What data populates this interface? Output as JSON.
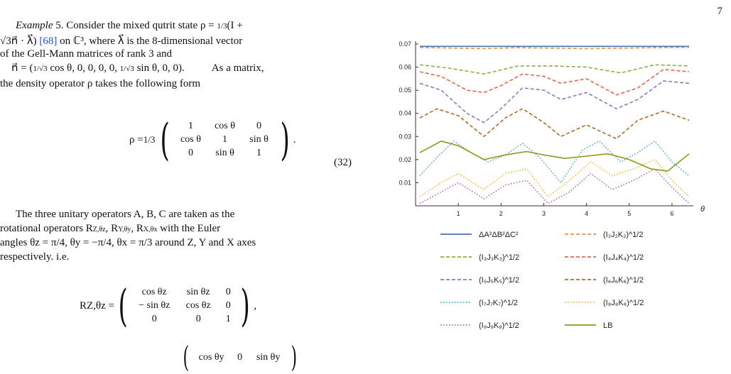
{
  "page_number": "7",
  "text": {
    "example_label": "Example",
    "example_num": "5.",
    "line1": "Consider the mixed qutrit state ρ = ",
    "frac_13": "1/3",
    "line1_tail": "(I +",
    "line2_a": "√3",
    "line2_b": "n⃗ · λ⃗) ",
    "ref68": "[68]",
    "line2_c": " on ℂ³, where λ⃗ is the 8-dimensional vector",
    "line3": "of the Gell-Mann matrices of rank 3 and",
    "line4_a": "n⃗ = (",
    "line4_frac": "1/√3",
    "line4_b": " cos θ, 0, 0, 0, 0, ",
    "line4_c": " sin θ, 0, 0).",
    "line4_d": "As a matrix,",
    "line5": "the density operator ρ takes the following form",
    "eq32_lhs": "ρ = ",
    "eq32_frac": "1/3",
    "eq32_rows": [
      [
        "1",
        "cos θ",
        "0"
      ],
      [
        "cos θ",
        "1",
        "sin θ"
      ],
      [
        "0",
        "sin θ",
        "1"
      ]
    ],
    "eq32_end": ".",
    "eq32_num": "(32)",
    "para2_l1": "The three unitary operators A, B, C are taken as the",
    "para2_l2": "rotational operators R",
    "para2_l2_tail": " with the Euler",
    "para2_l3": "angles θz = π/4, θy = −π/4, θx = π/3 around Z, Y and X axes",
    "para2_l4": "respectively. i.e.",
    "rz_lhs": "RZ,θz = ",
    "rz_rows": [
      [
        "cos θz",
        "sin θz",
        "0"
      ],
      [
        "− sin θz",
        "cos θz",
        "0"
      ],
      [
        "0",
        "0",
        "1"
      ]
    ],
    "rz_end": ",",
    "ry_row1": [
      "cos θy",
      "0",
      "sin θy"
    ]
  },
  "chart_data": {
    "type": "line",
    "x_label": "θ",
    "xlim": [
      0,
      6.4
    ],
    "ylim": [
      0,
      0.07
    ],
    "x_ticks": [
      "1",
      "2",
      "3",
      "4",
      "5",
      "6"
    ],
    "y_ticks": [
      "0.01",
      "0.02",
      "0.03",
      "0.04",
      "0.05",
      "0.06",
      "0.07"
    ],
    "series": [
      {
        "name": "ΔA²ΔB²ΔC²",
        "color": "#4a72b0",
        "dash": "solid",
        "x": [
          0.1,
          6.4
        ],
        "y": [
          0.069,
          0.069
        ]
      },
      {
        "name": "(I₂J₂K₂)^1/2",
        "color": "#e0973a",
        "dash": "dashed",
        "x": [
          0.1,
          1.0,
          1.6,
          2.4,
          3.2,
          4.0,
          4.8,
          5.6,
          6.4
        ],
        "y": [
          0.0685,
          0.0682,
          0.068,
          0.0684,
          0.0682,
          0.068,
          0.0682,
          0.0684,
          0.0686
        ]
      },
      {
        "name": "(I₃J₃K₃)^1/2",
        "color": "#8db13d",
        "dash": "dashed",
        "x": [
          0.1,
          0.8,
          1.6,
          2.4,
          3.2,
          4.0,
          4.8,
          5.6,
          6.4
        ],
        "y": [
          0.061,
          0.0595,
          0.057,
          0.0605,
          0.0605,
          0.06,
          0.0575,
          0.061,
          0.0605
        ]
      },
      {
        "name": "(I₄J₄K₄)^1/2",
        "color": "#e06848",
        "dash": "dashed",
        "x": [
          0.1,
          0.6,
          1.2,
          1.6,
          2.0,
          2.5,
          3.0,
          3.4,
          4.0,
          4.7,
          5.2,
          5.8,
          6.4
        ],
        "y": [
          0.058,
          0.056,
          0.05,
          0.049,
          0.052,
          0.057,
          0.056,
          0.053,
          0.055,
          0.048,
          0.051,
          0.059,
          0.058
        ]
      },
      {
        "name": "(I₅J₅K₅)^1/2",
        "color": "#8a7cc0",
        "dash": "dashed",
        "x": [
          0.1,
          0.6,
          1.2,
          1.6,
          2.0,
          2.5,
          3.0,
          3.4,
          4.0,
          4.7,
          5.2,
          5.8,
          6.4
        ],
        "y": [
          0.053,
          0.05,
          0.04,
          0.036,
          0.042,
          0.051,
          0.05,
          0.046,
          0.049,
          0.042,
          0.046,
          0.054,
          0.053
        ]
      },
      {
        "name": "(I₆J₆K₆)^1/2",
        "color": "#b06d28",
        "dash": "dashed",
        "x": [
          0.1,
          0.5,
          1.0,
          1.6,
          2.1,
          2.5,
          3.0,
          3.4,
          4.0,
          4.7,
          5.2,
          5.8,
          6.4
        ],
        "y": [
          0.038,
          0.042,
          0.039,
          0.03,
          0.038,
          0.042,
          0.036,
          0.03,
          0.035,
          0.029,
          0.037,
          0.041,
          0.037
        ]
      },
      {
        "name": "(I₇J₇K₇)^1/2",
        "color": "#4aa7c8",
        "dash": "dotted",
        "x": [
          0.1,
          0.5,
          0.9,
          1.3,
          1.7,
          2.1,
          2.5,
          2.9,
          3.4,
          3.9,
          4.3,
          4.8,
          5.2,
          5.6,
          6.0,
          6.4
        ],
        "y": [
          0.013,
          0.021,
          0.028,
          0.023,
          0.019,
          0.022,
          0.027,
          0.021,
          0.01,
          0.024,
          0.028,
          0.019,
          0.023,
          0.028,
          0.019,
          0.013
        ]
      },
      {
        "name": "(I₈J₈K₈)^1/2",
        "color": "#f2b830",
        "dash": "dotted",
        "x": [
          0.1,
          0.6,
          1.0,
          1.6,
          2.1,
          2.6,
          3.1,
          3.6,
          4.1,
          4.6,
          5.1,
          5.6,
          6.0,
          6.4
        ],
        "y": [
          0.004,
          0.01,
          0.014,
          0.007,
          0.014,
          0.016,
          0.004,
          0.011,
          0.019,
          0.013,
          0.016,
          0.02,
          0.011,
          0.004
        ]
      },
      {
        "name": "(I₉J₉K₉)^1/2",
        "color": "#a86ab8",
        "dash": "dotted",
        "x": [
          0.1,
          0.6,
          1.0,
          1.6,
          2.1,
          2.6,
          3.1,
          3.6,
          4.1,
          4.6,
          5.1,
          5.6,
          6.0,
          6.4
        ],
        "y": [
          0.001,
          0.006,
          0.01,
          0.003,
          0.009,
          0.011,
          0.001,
          0.006,
          0.014,
          0.007,
          0.011,
          0.016,
          0.008,
          0.001
        ]
      },
      {
        "name": "LB",
        "color": "#8a9a1a",
        "dash": "solid",
        "x": [
          0.1,
          0.6,
          1.0,
          1.6,
          2.1,
          2.6,
          3.0,
          3.5,
          4.0,
          4.5,
          5.0,
          5.5,
          5.9,
          6.4
        ],
        "y": [
          0.023,
          0.028,
          0.026,
          0.02,
          0.022,
          0.0235,
          0.022,
          0.0205,
          0.0215,
          0.0225,
          0.02,
          0.016,
          0.015,
          0.0225
        ]
      }
    ]
  }
}
